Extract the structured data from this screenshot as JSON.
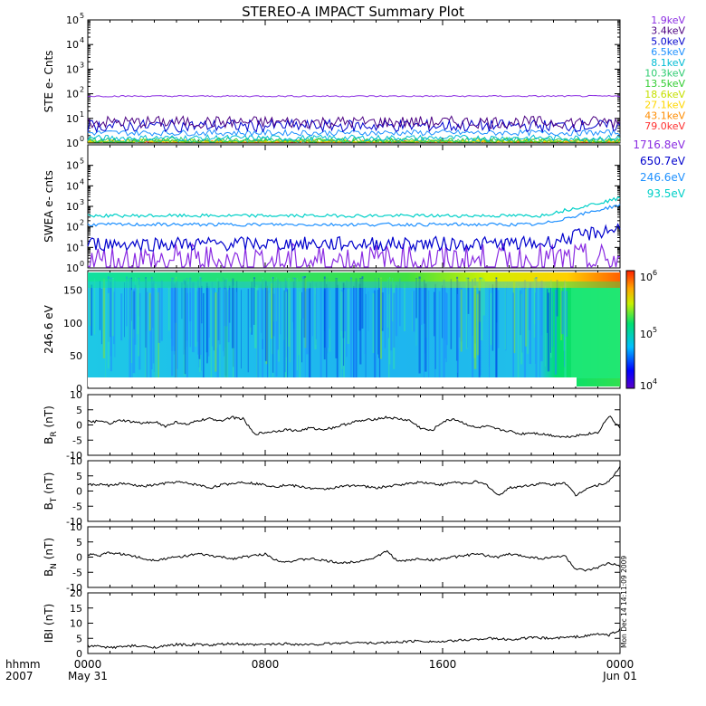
{
  "title": "STEREO-A IMPACT Summary Plot",
  "colors": {
    "bg": "#ffffff",
    "axis": "#000000",
    "trace": "#000000"
  },
  "chart_data": [
    {
      "type": "line",
      "ylabel": "STE e- Cnts",
      "yscale": "log",
      "ytick_labels": [
        "10",
        "10",
        "10",
        "10",
        "10",
        "10"
      ],
      "ytick_exponents": [
        "0",
        "1",
        "2",
        "3",
        "4",
        "5"
      ],
      "ylim": [
        1,
        100000
      ],
      "series": [
        {
          "name": "1.9keV",
          "color": "#8a2be2",
          "level": 80
        },
        {
          "name": "3.4keV",
          "color": "#4b0082",
          "level": 7
        },
        {
          "name": "5.0keV",
          "color": "#0000cd",
          "level": 5
        },
        {
          "name": "6.5keV",
          "color": "#1e90ff",
          "level": 2.6
        },
        {
          "name": "8.1keV",
          "color": "#00bcd4",
          "level": 1.6
        },
        {
          "name": "10.3keV",
          "color": "#2ecc71",
          "level": 1.3
        },
        {
          "name": "13.5keV",
          "color": "#32cd32",
          "level": 1.2
        },
        {
          "name": "18.6keV",
          "color": "#c6e000",
          "level": 1.1
        },
        {
          "name": "27.1keV",
          "color": "#ffd700",
          "level": 1.05
        },
        {
          "name": "43.1keV",
          "color": "#ff8c00",
          "level": 1.02
        },
        {
          "name": "79.0keV",
          "color": "#ff3030",
          "level": 1.0
        }
      ]
    },
    {
      "type": "line",
      "ylabel": "SWEA e- cnts",
      "yscale": "log",
      "ytick_labels": [
        "10",
        "10",
        "10",
        "10",
        "10",
        "10"
      ],
      "ytick_exponents": [
        "0",
        "1",
        "2",
        "3",
        "4",
        "5"
      ],
      "ylim": [
        1,
        1000000
      ],
      "series": [
        {
          "name": "1716.8eV",
          "color": "#8a2be2",
          "start": 2,
          "end": 2
        },
        {
          "name": "650.7eV",
          "color": "#0000cd",
          "start": 15,
          "end": 90
        },
        {
          "name": "246.6eV",
          "color": "#1e90ff",
          "start": 130,
          "end": 1200
        },
        {
          "name": "93.5eV",
          "color": "#00d0c8",
          "start": 350,
          "end": 2500
        }
      ]
    },
    {
      "type": "heatmap",
      "ylabel": "246.6 eV",
      "ylim": [
        0,
        180
      ],
      "ytick_values": [
        0,
        50,
        100,
        150
      ],
      "colorbar_labels": [
        "10",
        "10",
        "10"
      ],
      "colorbar_exponents": [
        "4",
        "5",
        "6"
      ]
    },
    {
      "type": "line",
      "ylabel": "BR (nT)",
      "ylabel_main": "B",
      "ylabel_sub": "R",
      "ylabel_unit": " (nT)",
      "ylim": [
        -10,
        10
      ],
      "ytick_values": [
        -10,
        -5,
        0,
        5,
        10
      ],
      "series": [
        {
          "x": [
            0,
            0.5,
            1,
            1.5,
            2,
            2.5,
            3,
            3.5,
            4,
            4.5,
            5,
            5.5,
            6,
            6.5,
            7,
            7.5,
            8,
            8.5,
            9,
            9.5,
            10,
            10.5,
            11,
            11.5,
            12,
            12.5,
            13,
            13.5,
            14,
            14.5,
            15,
            15.5,
            16,
            16.5,
            17,
            17.5,
            18,
            18.5,
            19,
            19.5,
            20,
            20.5,
            21,
            21.5,
            22,
            22.5,
            23,
            23.5,
            24
          ],
          "y": [
            1,
            1.2,
            0.5,
            1.5,
            1,
            0.5,
            1.2,
            -0.5,
            1,
            0,
            1.5,
            2,
            1.5,
            2.5,
            2,
            -3,
            -2.5,
            -2,
            -1.5,
            -2,
            -1,
            -1.5,
            -1,
            0,
            1,
            1.5,
            2,
            2.5,
            2,
            1.5,
            -1,
            -2,
            1,
            2,
            0.5,
            -1,
            -0.5,
            -1.5,
            -2,
            -3,
            -2.5,
            -3,
            -3.5,
            -4,
            -3.5,
            -3,
            -2.5,
            3,
            -1
          ]
        }
      ]
    },
    {
      "type": "line",
      "ylabel": "BT (nT)",
      "ylabel_main": "B",
      "ylabel_sub": "T",
      "ylabel_unit": " (nT)",
      "ylim": [
        -10,
        10
      ],
      "ytick_values": [
        -10,
        -5,
        0,
        5,
        10
      ],
      "series": [
        {
          "x": [
            0,
            0.5,
            1,
            1.5,
            2,
            2.5,
            3,
            3.5,
            4,
            4.5,
            5,
            5.5,
            6,
            6.5,
            7,
            7.5,
            8,
            8.5,
            9,
            9.5,
            10,
            10.5,
            11,
            11.5,
            12,
            12.5,
            13,
            13.5,
            14,
            14.5,
            15,
            15.5,
            16,
            16.5,
            17,
            17.5,
            18,
            18.5,
            19,
            19.5,
            20,
            20.5,
            21,
            21.5,
            22,
            22.5,
            23,
            23.5,
            24
          ],
          "y": [
            2,
            2.2,
            1.8,
            2.5,
            2,
            1.5,
            2,
            2.5,
            3,
            2.5,
            2,
            1,
            2,
            2.5,
            3,
            2.5,
            2,
            1.5,
            2,
            1.5,
            1,
            0.5,
            1,
            1.5,
            2,
            1.5,
            1,
            1.5,
            2,
            2.5,
            3,
            2.5,
            2,
            3,
            2.5,
            3,
            2,
            -1.5,
            1,
            1.5,
            2,
            2.5,
            2,
            3,
            -1.5,
            1,
            2,
            3,
            8
          ]
        }
      ]
    },
    {
      "type": "line",
      "ylabel": "BN (nT)",
      "ylabel_main": "B",
      "ylabel_sub": "N",
      "ylabel_unit": " (nT)",
      "ylim": [
        -10,
        10
      ],
      "ytick_values": [
        -10,
        -5,
        0,
        5,
        10
      ],
      "series": [
        {
          "x": [
            0,
            0.5,
            1,
            1.5,
            2,
            2.5,
            3,
            3.5,
            4,
            4.5,
            5,
            5.5,
            6,
            6.5,
            7,
            7.5,
            8,
            8.5,
            9,
            9.5,
            10,
            10.5,
            11,
            11.5,
            12,
            12.5,
            13,
            13.5,
            14,
            14.5,
            15,
            15.5,
            16,
            16.5,
            17,
            17.5,
            18,
            18.5,
            19,
            19.5,
            20,
            20.5,
            21,
            21.5,
            22,
            22.5,
            23,
            23.5,
            24
          ],
          "y": [
            1,
            0.5,
            1.5,
            1,
            0.5,
            -0.5,
            -1,
            -0.5,
            0,
            0.5,
            1,
            0.5,
            0,
            -0.5,
            0,
            0.5,
            1,
            -1,
            -1.5,
            -1,
            -0.5,
            -1,
            -1.5,
            -2,
            -1.5,
            -1,
            0,
            2,
            -1.5,
            -1,
            -0.5,
            -1,
            -0.5,
            0,
            0.5,
            1,
            0.5,
            0,
            1,
            0.5,
            0,
            -0.5,
            0,
            0.5,
            -4,
            -4.5,
            -3.5,
            -2,
            -3
          ]
        }
      ]
    },
    {
      "type": "line",
      "ylabel": "|B| (nT)",
      "ylabel_main": "IBI",
      "ylabel_sub": "",
      "ylabel_unit": " (nT)",
      "ylim": [
        0,
        20
      ],
      "ytick_values": [
        0,
        5,
        10,
        15,
        20
      ],
      "series": [
        {
          "x": [
            0,
            0.5,
            1,
            1.5,
            2,
            2.5,
            3,
            3.5,
            4,
            4.5,
            5,
            5.5,
            6,
            6.5,
            7,
            7.5,
            8,
            8.5,
            9,
            9.5,
            10,
            10.5,
            11,
            11.5,
            12,
            12.5,
            13,
            13.5,
            14,
            14.5,
            15,
            15.5,
            16,
            16.5,
            17,
            17.5,
            18,
            18.5,
            19,
            19.5,
            20,
            20.5,
            21,
            21.5,
            22,
            22.5,
            23,
            23.5,
            24
          ],
          "y": [
            2.5,
            2.3,
            2,
            2.2,
            2.5,
            2.3,
            2.1,
            2.4,
            3,
            2.8,
            3,
            2.7,
            3,
            3.2,
            3,
            2.8,
            3,
            3.1,
            3.3,
            3,
            2.9,
            3.1,
            3.3,
            3.5,
            3.7,
            3.5,
            3.4,
            3.6,
            3.8,
            4,
            4.2,
            4,
            3.8,
            4.2,
            4.5,
            4.7,
            5,
            4.8,
            4.6,
            4.9,
            5.2,
            5.1,
            5,
            5.3,
            5.5,
            5.8,
            6.5,
            6,
            8
          ]
        }
      ]
    }
  ],
  "xaxis": {
    "row1_label": "hhmm",
    "row2_label": "2007",
    "ticks": [
      {
        "hour": 0,
        "top": "0000",
        "bottom": "May 31"
      },
      {
        "hour": 8,
        "top": "0800",
        "bottom": ""
      },
      {
        "hour": 16,
        "top": "1600",
        "bottom": ""
      },
      {
        "hour": 24,
        "top": "0000",
        "bottom": "Jun 01"
      }
    ],
    "xlim": [
      0,
      24
    ]
  },
  "timestamp": "Mon Dec 14 14:11:09 2009"
}
